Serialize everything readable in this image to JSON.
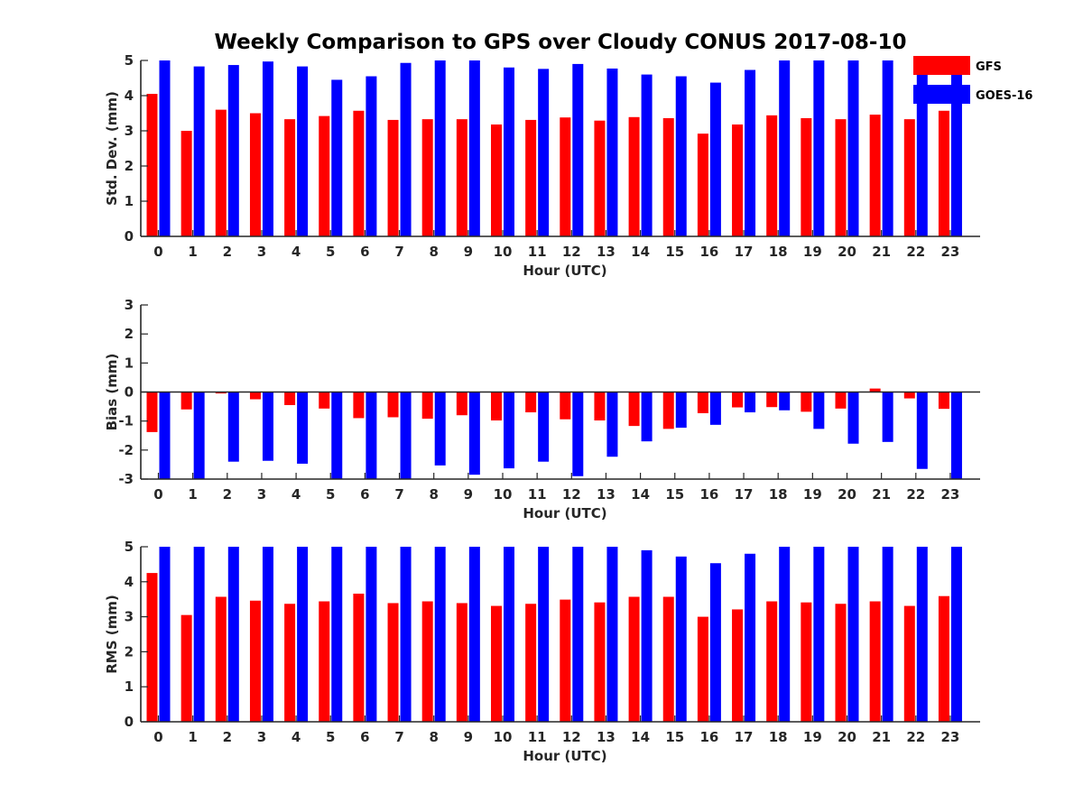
{
  "figure": {
    "title": "Weekly Comparison to GPS over Cloudy CONUS 2017-08-10",
    "legend": {
      "placement": "top-right",
      "entries": [
        {
          "label": "GFS",
          "color": "#ff0000"
        },
        {
          "label": "GOES-16",
          "color": "#0000ff"
        }
      ]
    }
  },
  "chart_data": [
    {
      "type": "bar",
      "xlabel": "Hour (UTC)",
      "ylabel": "Std. Dev. (mm)",
      "ylim": [
        0,
        5
      ],
      "yticks": [
        0,
        1,
        2,
        3,
        4,
        5
      ],
      "categories": [
        "0",
        "1",
        "2",
        "3",
        "4",
        "5",
        "6",
        "7",
        "8",
        "9",
        "10",
        "11",
        "12",
        "13",
        "14",
        "15",
        "16",
        "17",
        "18",
        "19",
        "20",
        "21",
        "22",
        "23"
      ],
      "series": [
        {
          "name": "GFS",
          "color": "#ff0000",
          "values": [
            4.05,
            3.0,
            3.6,
            3.5,
            3.33,
            3.42,
            3.57,
            3.31,
            3.33,
            3.33,
            3.18,
            3.31,
            3.38,
            3.29,
            3.39,
            3.36,
            2.92,
            3.18,
            3.44,
            3.36,
            3.33,
            3.46,
            3.33,
            3.57
          ]
        },
        {
          "name": "GOES-16",
          "color": "#0000ff",
          "values": [
            5.0,
            4.83,
            4.87,
            4.97,
            4.83,
            4.45,
            4.55,
            4.93,
            5.0,
            5.0,
            4.8,
            4.76,
            4.9,
            4.77,
            4.6,
            4.55,
            4.37,
            4.73,
            5.0,
            5.0,
            5.0,
            5.0,
            4.95,
            5.0
          ]
        }
      ]
    },
    {
      "type": "bar",
      "xlabel": "Hour (UTC)",
      "ylabel": "Bias (mm)",
      "ylim": [
        -3,
        3
      ],
      "yticks": [
        -3,
        -2,
        -1,
        0,
        1,
        2,
        3
      ],
      "zero_line": true,
      "categories": [
        "0",
        "1",
        "2",
        "3",
        "4",
        "5",
        "6",
        "7",
        "8",
        "9",
        "10",
        "11",
        "12",
        "13",
        "14",
        "15",
        "16",
        "17",
        "18",
        "19",
        "20",
        "21",
        "22",
        "23"
      ],
      "series": [
        {
          "name": "GFS",
          "color": "#ff0000",
          "values": [
            -1.38,
            -0.6,
            -0.05,
            -0.25,
            -0.45,
            -0.57,
            -0.9,
            -0.87,
            -0.92,
            -0.8,
            -0.98,
            -0.7,
            -0.94,
            -0.98,
            -1.17,
            -1.27,
            -0.73,
            -0.53,
            -0.52,
            -0.68,
            -0.57,
            0.12,
            -0.22,
            -0.58
          ]
        },
        {
          "name": "GOES-16",
          "color": "#0000ff",
          "values": [
            -3.0,
            -3.0,
            -2.4,
            -2.37,
            -2.47,
            -3.0,
            -3.0,
            -3.0,
            -2.53,
            -2.85,
            -2.63,
            -2.4,
            -2.9,
            -2.23,
            -1.7,
            -1.23,
            -1.13,
            -0.7,
            -0.63,
            -1.27,
            -1.78,
            -1.72,
            -2.65,
            -3.0
          ]
        }
      ]
    },
    {
      "type": "bar",
      "xlabel": "Hour (UTC)",
      "ylabel": "RMS (mm)",
      "ylim": [
        0,
        5
      ],
      "yticks": [
        0,
        1,
        2,
        3,
        4,
        5
      ],
      "categories": [
        "0",
        "1",
        "2",
        "3",
        "4",
        "5",
        "6",
        "7",
        "8",
        "9",
        "10",
        "11",
        "12",
        "13",
        "14",
        "15",
        "16",
        "17",
        "18",
        "19",
        "20",
        "21",
        "22",
        "23"
      ],
      "series": [
        {
          "name": "GFS",
          "color": "#ff0000",
          "values": [
            4.25,
            3.05,
            3.57,
            3.46,
            3.37,
            3.44,
            3.66,
            3.39,
            3.44,
            3.39,
            3.31,
            3.37,
            3.49,
            3.41,
            3.57,
            3.57,
            3.0,
            3.21,
            3.44,
            3.41,
            3.37,
            3.44,
            3.31,
            3.59
          ]
        },
        {
          "name": "GOES-16",
          "color": "#0000ff",
          "values": [
            5.0,
            5.0,
            5.0,
            5.0,
            5.0,
            5.0,
            5.0,
            5.0,
            5.0,
            5.0,
            5.0,
            5.0,
            5.0,
            5.0,
            4.9,
            4.72,
            4.53,
            4.8,
            5.0,
            5.0,
            5.0,
            5.0,
            5.0,
            5.0
          ]
        }
      ]
    }
  ]
}
